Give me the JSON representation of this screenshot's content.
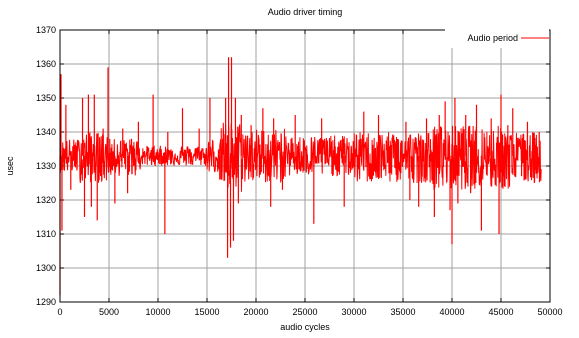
{
  "chart_data": {
    "type": "line",
    "title": "Audio driver timing",
    "xlabel": "audio cycles",
    "ylabel": "usec",
    "xlim": [
      0,
      50000
    ],
    "ylim": [
      1290,
      1370
    ],
    "x_ticks": [
      0,
      5000,
      10000,
      15000,
      20000,
      25000,
      30000,
      35000,
      40000,
      45000,
      50000
    ],
    "x_tick_labels": [
      "0",
      "5000",
      "10000",
      "15000",
      "20000",
      "25000",
      "30000",
      "35000",
      "40000",
      "45000",
      "50000"
    ],
    "y_ticks": [
      1290,
      1300,
      1310,
      1320,
      1330,
      1340,
      1350,
      1360,
      1370
    ],
    "y_tick_labels": [
      "1290",
      "1300",
      "1310",
      "1320",
      "1330",
      "1340",
      "1350",
      "1360",
      "1370"
    ],
    "grid": true,
    "legend_position": "top-right",
    "series": [
      {
        "name": "Audio period",
        "color": "#ff0000",
        "baseline": 1333,
        "x_range": [
          0,
          49100
        ],
        "spikes": [
          {
            "x": 0,
            "y": 1292
          },
          {
            "x": 100,
            "y": 1357
          },
          {
            "x": 200,
            "y": 1311
          },
          {
            "x": 600,
            "y": 1348
          },
          {
            "x": 1100,
            "y": 1323
          },
          {
            "x": 2300,
            "y": 1350
          },
          {
            "x": 2500,
            "y": 1315
          },
          {
            "x": 2900,
            "y": 1351
          },
          {
            "x": 3200,
            "y": 1318
          },
          {
            "x": 3500,
            "y": 1351
          },
          {
            "x": 3800,
            "y": 1314
          },
          {
            "x": 4400,
            "y": 1341
          },
          {
            "x": 4900,
            "y": 1359
          },
          {
            "x": 5600,
            "y": 1319
          },
          {
            "x": 6400,
            "y": 1341
          },
          {
            "x": 6900,
            "y": 1322
          },
          {
            "x": 7300,
            "y": 1338
          },
          {
            "x": 8000,
            "y": 1343
          },
          {
            "x": 9500,
            "y": 1351
          },
          {
            "x": 10700,
            "y": 1310
          },
          {
            "x": 11000,
            "y": 1340
          },
          {
            "x": 12500,
            "y": 1347
          },
          {
            "x": 14200,
            "y": 1341
          },
          {
            "x": 15300,
            "y": 1350
          },
          {
            "x": 16300,
            "y": 1326
          },
          {
            "x": 16900,
            "y": 1350
          },
          {
            "x": 17100,
            "y": 1303
          },
          {
            "x": 17200,
            "y": 1362
          },
          {
            "x": 17400,
            "y": 1306
          },
          {
            "x": 17500,
            "y": 1362
          },
          {
            "x": 17700,
            "y": 1308
          },
          {
            "x": 17900,
            "y": 1350
          },
          {
            "x": 18200,
            "y": 1319
          },
          {
            "x": 18500,
            "y": 1345
          },
          {
            "x": 19500,
            "y": 1342
          },
          {
            "x": 20700,
            "y": 1347
          },
          {
            "x": 21500,
            "y": 1318
          },
          {
            "x": 21800,
            "y": 1344
          },
          {
            "x": 22700,
            "y": 1323
          },
          {
            "x": 24000,
            "y": 1345
          },
          {
            "x": 25900,
            "y": 1313
          },
          {
            "x": 26700,
            "y": 1344
          },
          {
            "x": 29000,
            "y": 1318
          },
          {
            "x": 31000,
            "y": 1346
          },
          {
            "x": 32500,
            "y": 1345
          },
          {
            "x": 35300,
            "y": 1343
          },
          {
            "x": 35700,
            "y": 1320
          },
          {
            "x": 36600,
            "y": 1318
          },
          {
            "x": 37400,
            "y": 1344
          },
          {
            "x": 38200,
            "y": 1315
          },
          {
            "x": 38700,
            "y": 1345
          },
          {
            "x": 39300,
            "y": 1349
          },
          {
            "x": 39800,
            "y": 1317
          },
          {
            "x": 40000,
            "y": 1307
          },
          {
            "x": 40300,
            "y": 1350
          },
          {
            "x": 40600,
            "y": 1319
          },
          {
            "x": 41400,
            "y": 1345
          },
          {
            "x": 41900,
            "y": 1322
          },
          {
            "x": 42500,
            "y": 1348
          },
          {
            "x": 43000,
            "y": 1311
          },
          {
            "x": 44000,
            "y": 1344
          },
          {
            "x": 44800,
            "y": 1310
          },
          {
            "x": 45000,
            "y": 1351
          },
          {
            "x": 45300,
            "y": 1327
          },
          {
            "x": 45700,
            "y": 1342
          },
          {
            "x": 46200,
            "y": 1347
          },
          {
            "x": 47100,
            "y": 1327
          },
          {
            "x": 47700,
            "y": 1343
          },
          {
            "x": 48400,
            "y": 1325
          },
          {
            "x": 48900,
            "y": 1340
          }
        ],
        "bands": [
          {
            "x": [
              0,
              2000
            ],
            "low": 1328,
            "high": 1338
          },
          {
            "x": [
              2000,
              5000
            ],
            "low": 1325,
            "high": 1340
          },
          {
            "x": [
              5000,
              8200
            ],
            "low": 1327,
            "high": 1338
          },
          {
            "x": [
              8200,
              15000
            ],
            "low": 1330,
            "high": 1336
          },
          {
            "x": [
              15000,
              16400
            ],
            "low": 1328,
            "high": 1338
          },
          {
            "x": [
              16400,
              18600
            ],
            "low": 1322,
            "high": 1343
          },
          {
            "x": [
              18600,
              23000
            ],
            "low": 1325,
            "high": 1341
          },
          {
            "x": [
              23000,
              30000
            ],
            "low": 1327,
            "high": 1339
          },
          {
            "x": [
              30000,
              38000
            ],
            "low": 1325,
            "high": 1340
          },
          {
            "x": [
              38000,
              46000
            ],
            "low": 1323,
            "high": 1342
          },
          {
            "x": [
              46000,
              49100
            ],
            "low": 1325,
            "high": 1340
          }
        ]
      }
    ]
  }
}
